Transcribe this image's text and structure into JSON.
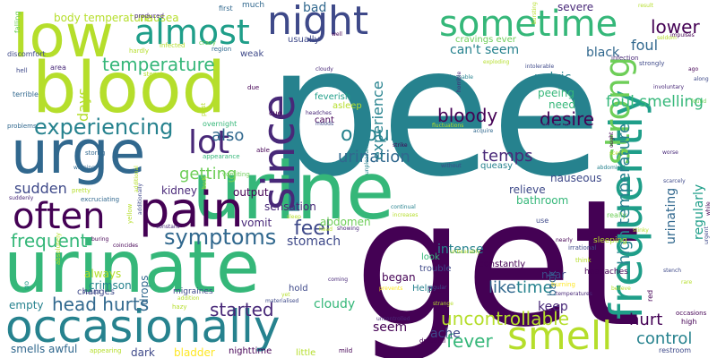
{
  "palette": {
    "dark_purple": "#440154",
    "purple": "#482878",
    "indigo": "#3e4989",
    "blue": "#31688e",
    "teal": "#26828e",
    "green_teal": "#1f9e89",
    "green": "#35b779",
    "light_green": "#6ece58",
    "yellow_green": "#b5de2b",
    "yellow": "#fde725"
  },
  "words": [
    {
      "text": "pee",
      "color": "#26828e"
    },
    {
      "text": "get",
      "color": "#440154"
    },
    {
      "text": "urine",
      "color": "#35b779"
    },
    {
      "text": "blood",
      "color": "#b5de2b"
    },
    {
      "text": "urinate",
      "color": "#35b779"
    },
    {
      "text": "urge",
      "color": "#31688e"
    },
    {
      "text": "low",
      "color": "#b5de2b"
    },
    {
      "text": "occasionally",
      "color": "#26828e"
    },
    {
      "text": "night",
      "color": "#3e4989"
    },
    {
      "text": "almost",
      "color": "#1f9e89"
    },
    {
      "text": "pain",
      "color": "#440154"
    },
    {
      "text": "often",
      "color": "#440154"
    },
    {
      "text": "sometime",
      "color": "#35b779"
    },
    {
      "text": "since",
      "color": "#482878"
    },
    {
      "text": "frequently",
      "color": "#1f9e89"
    },
    {
      "text": "smell",
      "color": "#b5de2b"
    },
    {
      "text": "strong",
      "color": "#6ece58"
    },
    {
      "text": "lot",
      "color": "#482878"
    },
    {
      "text": "experiencing",
      "color": "#26828e"
    },
    {
      "text": "frequent",
      "color": "#35b779"
    },
    {
      "text": "symptoms",
      "color": "#31688e"
    },
    {
      "text": "temperature",
      "color": "#35b779"
    },
    {
      "text": "feel",
      "color": "#3e4989"
    },
    {
      "text": "bloody",
      "color": "#440154"
    },
    {
      "text": "odour",
      "color": "#26828e"
    },
    {
      "text": "urination",
      "color": "#31688e"
    },
    {
      "text": "temps",
      "color": "#482878"
    },
    {
      "text": "desire",
      "color": "#440154"
    },
    {
      "text": "lower",
      "color": "#440154"
    },
    {
      "text": "foul smelling",
      "color": "#35b779"
    },
    {
      "text": "control",
      "color": "#26828e"
    },
    {
      "text": "hurt",
      "color": "#440154"
    },
    {
      "text": "head hurts",
      "color": "#31688e"
    },
    {
      "text": "uncontrollable",
      "color": "#b5de2b"
    },
    {
      "text": "fever",
      "color": "#35b779"
    },
    {
      "text": "started",
      "color": "#482878"
    },
    {
      "text": "like",
      "color": "#31688e"
    },
    {
      "text": "time",
      "color": "#26828e"
    },
    {
      "text": "high temperature",
      "color": "#26828e"
    },
    {
      "text": "urinating",
      "color": "#31688e"
    },
    {
      "text": "regularly",
      "color": "#1f9e89"
    },
    {
      "text": "foul",
      "color": "#31688e"
    },
    {
      "text": "also",
      "color": "#31688e"
    },
    {
      "text": "getting",
      "color": "#6ece58"
    },
    {
      "text": "sudden",
      "color": "#3e4989"
    },
    {
      "text": "days",
      "color": "#b5de2b"
    },
    {
      "text": "experience",
      "color": "#26828e"
    },
    {
      "text": "body temperature",
      "color": "#b5de2b"
    },
    {
      "text": "can't seem",
      "color": "#26828e"
    },
    {
      "text": "bad",
      "color": "#31688e"
    },
    {
      "text": "severe",
      "color": "#482878"
    },
    {
      "text": "nausea",
      "color": "#b5de2b"
    },
    {
      "text": "black",
      "color": "#31688e"
    },
    {
      "text": "pelvic",
      "color": "#26828e"
    },
    {
      "text": "intense",
      "color": "#26828e"
    },
    {
      "text": "nauseous",
      "color": "#3e4989"
    },
    {
      "text": "relieve",
      "color": "#3e4989"
    },
    {
      "text": "bathroom",
      "color": "#35b779"
    },
    {
      "text": "seem",
      "color": "#440154"
    },
    {
      "text": "keep",
      "color": "#482878"
    },
    {
      "text": "ache",
      "color": "#3e4989"
    },
    {
      "text": "cloudy",
      "color": "#35b779"
    },
    {
      "text": "stomach",
      "color": "#3e4989"
    },
    {
      "text": "sensation",
      "color": "#482878"
    },
    {
      "text": "always",
      "color": "#b5de2b"
    },
    {
      "text": "smells awful",
      "color": "#31688e"
    },
    {
      "text": "bladder",
      "color": "#fde725"
    },
    {
      "text": "abdomen",
      "color": "#6ece58"
    },
    {
      "text": "vomit",
      "color": "#482878"
    },
    {
      "text": "crimson",
      "color": "#26828e"
    },
    {
      "text": "empty",
      "color": "#26828e"
    },
    {
      "text": "dark",
      "color": "#3e4989"
    },
    {
      "text": "kidney",
      "color": "#482878"
    },
    {
      "text": "output",
      "color": "#440154"
    },
    {
      "text": "peeing",
      "color": "#35b779"
    },
    {
      "text": "need",
      "color": "#35b779"
    },
    {
      "text": "began",
      "color": "#440154"
    },
    {
      "text": "back",
      "color": "#31688e"
    },
    {
      "text": "near",
      "color": "#3e4989"
    },
    {
      "text": "drops",
      "color": "#31688e"
    },
    {
      "text": "changes",
      "color": "#3e4989"
    },
    {
      "text": "cravings ever",
      "color": "#6ece58"
    },
    {
      "text": "weak",
      "color": "#3e4989"
    },
    {
      "text": "usually",
      "color": "#3e4989"
    },
    {
      "text": "feverish",
      "color": "#1f9e89"
    },
    {
      "text": "asleep",
      "color": "#b5de2b"
    },
    {
      "text": "cant",
      "color": "#440154"
    },
    {
      "text": "queasy",
      "color": "#26828e"
    },
    {
      "text": "constantly",
      "color": "#440154"
    },
    {
      "text": "trouble",
      "color": "#3e4989"
    },
    {
      "text": "four",
      "color": "#440154"
    },
    {
      "text": "Help",
      "color": "#26828e"
    },
    {
      "text": "look",
      "color": "#35b779"
    },
    {
      "text": "hold",
      "color": "#3e4989"
    },
    {
      "text": "little",
      "color": "#b5de2b"
    },
    {
      "text": "nighttime",
      "color": "#440154"
    },
    {
      "text": "migraines",
      "color": "#3e4989"
    },
    {
      "text": "much",
      "color": "#31688e"
    },
    {
      "text": "first",
      "color": "#31688e"
    },
    {
      "text": "produced",
      "color": "#482878"
    },
    {
      "text": "crazy",
      "color": "#6ece58"
    },
    {
      "text": "infected",
      "color": "#b5de2b"
    },
    {
      "text": "region",
      "color": "#31688e"
    },
    {
      "text": "discomfort",
      "color": "#3e4989"
    },
    {
      "text": "area",
      "color": "#482878"
    },
    {
      "text": "hell",
      "color": "#3e4989"
    },
    {
      "text": "terrible",
      "color": "#31688e"
    },
    {
      "text": "problems",
      "color": "#31688e"
    },
    {
      "text": "falling",
      "color": "#6ece58"
    },
    {
      "text": "stench",
      "color": "#b5de2b"
    },
    {
      "text": "hardly",
      "color": "#b5de2b"
    },
    {
      "text": "due",
      "color": "#440154"
    },
    {
      "text": "past",
      "color": "#b5de2b"
    },
    {
      "text": "overnight",
      "color": "#35b779"
    },
    {
      "text": "cue",
      "color": "#440154"
    },
    {
      "text": "able",
      "color": "#440154"
    },
    {
      "text": "appearance",
      "color": "#35b779"
    },
    {
      "text": "vomiting",
      "color": "#6ece58"
    },
    {
      "text": "well",
      "color": "#440154"
    },
    {
      "text": "cloudy2",
      "color": "#482878"
    },
    {
      "text": "headches",
      "color": "#482878"
    },
    {
      "text": "moods",
      "color": "#3e4989"
    },
    {
      "text": "fluctuations",
      "color": "#b5de2b"
    },
    {
      "text": "acquire",
      "color": "#31688e"
    },
    {
      "text": "practically",
      "color": "#26828e"
    },
    {
      "text": "strike",
      "color": "#440154"
    },
    {
      "text": "without",
      "color": "#3e4989"
    },
    {
      "text": "horrible",
      "color": "#482878"
    },
    {
      "text": "unfathomable",
      "color": "#26828e"
    },
    {
      "text": "exploding",
      "color": "#b5de2b"
    },
    {
      "text": "bursting",
      "color": "#b5de2b"
    },
    {
      "text": "intolerable",
      "color": "#3e4989"
    },
    {
      "text": "infection",
      "color": "#482878"
    },
    {
      "text": "strongly",
      "color": "#3e4989"
    },
    {
      "text": "result",
      "color": "#b5de2b"
    },
    {
      "text": "seldom",
      "color": "#b5de2b"
    },
    {
      "text": "impulses",
      "color": "#440154"
    },
    {
      "text": "ago",
      "color": "#440154"
    },
    {
      "text": "along",
      "color": "#3e4989"
    },
    {
      "text": "involuntary",
      "color": "#482878"
    },
    {
      "text": "found",
      "color": "#6ece58"
    },
    {
      "text": "scarcely",
      "color": "#3e4989"
    },
    {
      "text": "worse",
      "color": "#482878"
    },
    {
      "text": "scent",
      "color": "#b5de2b"
    },
    {
      "text": "abdominal",
      "color": "#26828e"
    },
    {
      "text": "ought",
      "color": "#440154"
    },
    {
      "text": "while",
      "color": "#440154"
    },
    {
      "text": "additionally",
      "color": "#3e4989"
    },
    {
      "text": "storng",
      "color": "#31688e"
    },
    {
      "text": "warning",
      "color": "#31688e"
    },
    {
      "text": "pretty",
      "color": "#b5de2b"
    },
    {
      "text": "excruciating",
      "color": "#31688e"
    },
    {
      "text": "suddenly",
      "color": "#482878"
    },
    {
      "text": "absolutely",
      "color": "#b5de2b"
    },
    {
      "text": "go",
      "color": "#1f9e89"
    },
    {
      "text": "abrupt",
      "color": "#3e4989"
    },
    {
      "text": "coincides",
      "color": "#440154"
    },
    {
      "text": "buring",
      "color": "#440154"
    },
    {
      "text": "constant",
      "color": "#482878"
    },
    {
      "text": "addition",
      "color": "#b5de2b"
    },
    {
      "text": "hazy",
      "color": "#b5de2b"
    },
    {
      "text": "appearing",
      "color": "#b5de2b"
    },
    {
      "text": "coming",
      "color": "#482878"
    },
    {
      "text": "materialised",
      "color": "#3e4989"
    },
    {
      "text": "mild",
      "color": "#440154"
    },
    {
      "text": "sleep",
      "color": "#b5de2b"
    },
    {
      "text": "showing",
      "color": "#482878"
    },
    {
      "text": "yet",
      "color": "#b5de2b"
    },
    {
      "text": "body",
      "color": "#b5de2b"
    },
    {
      "text": "yellow",
      "color": "#b5de2b"
    },
    {
      "text": "continual",
      "color": "#26828e"
    },
    {
      "text": "increases",
      "color": "#b5de2b"
    },
    {
      "text": "unpleasant",
      "color": "#26828e"
    },
    {
      "text": "unbearably",
      "color": "#b5de2b"
    },
    {
      "text": "regular",
      "color": "#3e4989"
    },
    {
      "text": "strange",
      "color": "#b5de2b"
    },
    {
      "text": "dreadful",
      "color": "#440154"
    },
    {
      "text": "prevents",
      "color": "#fde725"
    },
    {
      "text": "uncontrolled",
      "color": "#482878"
    },
    {
      "text": "nearly",
      "color": "#440154"
    },
    {
      "text": "sleeping",
      "color": "#b5de2b"
    },
    {
      "text": "irrational",
      "color": "#3e4989"
    },
    {
      "text": "think",
      "color": "#b5de2b"
    },
    {
      "text": "headaches",
      "color": "#440154"
    },
    {
      "text": "temperatures",
      "color": "#482878"
    },
    {
      "text": "burning",
      "color": "#fde725"
    },
    {
      "text": "really",
      "color": "#6ece58"
    },
    {
      "text": "use",
      "color": "#3e4989"
    },
    {
      "text": "red",
      "color": "#440154"
    },
    {
      "text": "stinky",
      "color": "#b5de2b"
    },
    {
      "text": "stench2",
      "color": "#3e4989"
    },
    {
      "text": "rare",
      "color": "#b5de2b"
    },
    {
      "text": "believe",
      "color": "#b5de2b"
    },
    {
      "text": "occasions",
      "color": "#440154"
    },
    {
      "text": "high",
      "color": "#440154"
    },
    {
      "text": "restroom",
      "color": "#3e4989"
    },
    {
      "text": "urgent",
      "color": "#3e4989"
    },
    {
      "text": "additional",
      "color": "#b5de2b"
    },
    {
      "text": "head",
      "color": "#b5de2b"
    }
  ]
}
